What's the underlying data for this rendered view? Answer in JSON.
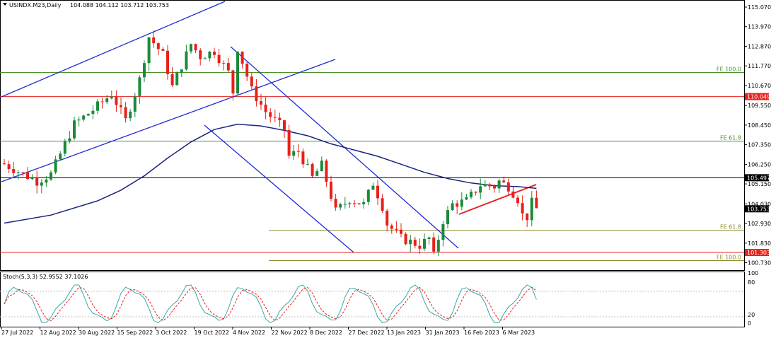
{
  "chart_data": {
    "type": "candlestick",
    "header": {
      "symbol_label": "USINDX.M23,Daily",
      "ohlc_text": "104.088 104.112 103.712 103.753"
    },
    "price_axis": {
      "ticks": [
        "115.070",
        "113.970",
        "112.870",
        "111.770",
        "110.670",
        "109.550",
        "108.450",
        "107.350",
        "106.250",
        "105.150",
        "104.030",
        "102.930",
        "101.830",
        "100.730"
      ],
      "range": [
        100.3,
        115.4
      ]
    },
    "date_axis": {
      "labels": [
        "27 Jul 2022",
        "12 Aug 2022",
        "30 Aug 2022",
        "15 Sep 2022",
        "3 Oct 2022",
        "19 Oct 2022",
        "4 Nov 2022",
        "22 Nov 2022",
        "8 Dec 2022",
        "27 Dec 2022",
        "13 Jan 2023",
        "31 Jan 2023",
        "16 Feb 2023",
        "6 Mar 2023"
      ]
    },
    "price_badges": [
      {
        "label": "110.049",
        "value": 110.049,
        "color": "#e8201a"
      },
      {
        "label": "105.497",
        "value": 105.497,
        "color": "#000000"
      },
      {
        "label": "103.753",
        "value": 103.753,
        "color": "#000000"
      },
      {
        "label": "101.303",
        "value": 101.303,
        "color": "#e8201a"
      }
    ],
    "horizontal_levels": [
      {
        "value": 111.4,
        "color": "#4d8f2a"
      },
      {
        "value": 110.049,
        "color": "#e8201a"
      },
      {
        "value": 107.55,
        "color": "#4d8f2a"
      },
      {
        "value": 105.497,
        "color": "#000000"
      },
      {
        "value": 102.55,
        "color": "#8e8c32"
      },
      {
        "value": 101.303,
        "color": "#e8201a"
      },
      {
        "value": 100.85,
        "color": "#8e8c32"
      }
    ],
    "fibo_labels": [
      {
        "text": "FE 100.0",
        "value": 111.4,
        "color": "#4d8f2a"
      },
      {
        "text": "FE 61.8",
        "value": 107.55,
        "color": "#4d8f2a"
      },
      {
        "text": "FE 61.8",
        "value": 102.55,
        "color": "#8e8c32"
      },
      {
        "text": "FE 100.0",
        "value": 100.85,
        "color": "#8e8c32"
      }
    ],
    "colors": {
      "bull": "#1a8a3a",
      "bear": "#e8201a",
      "ma": "#1a237e",
      "channel": "#1c2bd6",
      "trendline": "#e8201a",
      "stoch_main": "#3aa7a8",
      "stoch_signal": "#e8201a"
    },
    "stochastic": {
      "label": "Stoch(5,3,3) 52.9552 37.1026",
      "levels": [
        "100",
        "80",
        "20",
        "0"
      ]
    }
  }
}
